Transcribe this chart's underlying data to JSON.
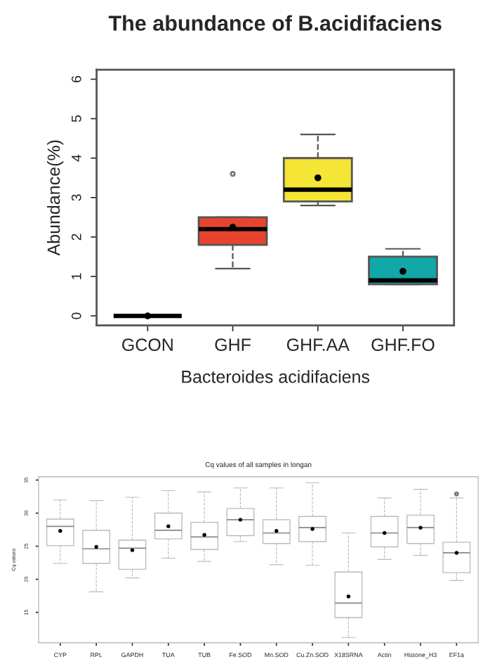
{
  "chart_data": [
    {
      "type": "box",
      "title": "The abundance of B.acidifaciens",
      "xlabel": "Bacteroides acidifaciens",
      "ylabel": "Abundance(%)",
      "categories": [
        "GCON",
        "GHF",
        "GHF.AA",
        "GHF.FO"
      ],
      "colors": [
        "#555555",
        "#e8432e",
        "#f5e535",
        "#12a7a8"
      ],
      "boxes": [
        {
          "low": 0,
          "q1": 0,
          "median": 0,
          "q3": 0,
          "high": 0,
          "mean": 0
        },
        {
          "low": 1.2,
          "q1": 1.8,
          "median": 2.2,
          "q3": 2.5,
          "high": 2.5,
          "mean": 2.25,
          "outliers": [
            3.6
          ]
        },
        {
          "low": 2.8,
          "q1": 2.9,
          "median": 3.2,
          "q3": 4.0,
          "high": 4.6,
          "mean": 3.5
        },
        {
          "low": 0.8,
          "q1": 0.8,
          "median": 0.9,
          "q3": 1.5,
          "high": 1.7,
          "mean": 1.13
        }
      ],
      "ylim": [
        -0.24,
        6.24
      ],
      "yticks": [
        0,
        1,
        2,
        3,
        4,
        5,
        6
      ],
      "grid": false,
      "marker": "circle"
    },
    {
      "type": "box",
      "title": "Cq values of all samples in longan",
      "ylabel": "Cq values",
      "categories": [
        "CYP",
        "RPL",
        "GAPDH",
        "TUA",
        "TUB",
        "Fe.SOD",
        "Mn.SOD",
        "Cu.Zn.SOD",
        "X18SRNA",
        "Actin",
        "Histone_H3",
        "EF1a"
      ],
      "colors": [
        "#ffffff",
        "#ffffff",
        "#ffffff",
        "#ffffff",
        "#ffffff",
        "#ffffff",
        "#ffffff",
        "#ffffff",
        "#ffffff",
        "#ffffff",
        "#ffffff",
        "#ffffff"
      ],
      "boxes": [
        {
          "low": 22.4,
          "q1": 25.1,
          "median": 28.0,
          "q3": 29.1,
          "high": 32.0,
          "mean": 27.3
        },
        {
          "low": 18.1,
          "q1": 22.4,
          "median": 24.6,
          "q3": 27.4,
          "high": 31.9,
          "mean": 24.9
        },
        {
          "low": 20.2,
          "q1": 21.5,
          "median": 24.7,
          "q3": 25.9,
          "high": 32.4,
          "mean": 24.4
        },
        {
          "low": 23.2,
          "q1": 26.1,
          "median": 27.4,
          "q3": 30.0,
          "high": 33.4,
          "mean": 28.0
        },
        {
          "low": 22.7,
          "q1": 24.5,
          "median": 26.4,
          "q3": 28.6,
          "high": 33.2,
          "mean": 26.7
        },
        {
          "low": 25.7,
          "q1": 26.6,
          "median": 29.0,
          "q3": 30.7,
          "high": 33.8,
          "mean": 29.0
        },
        {
          "low": 22.2,
          "q1": 25.4,
          "median": 27.0,
          "q3": 29.0,
          "high": 33.8,
          "mean": 27.3
        },
        {
          "low": 22.1,
          "q1": 25.7,
          "median": 27.8,
          "q3": 29.5,
          "high": 34.6,
          "mean": 27.6
        },
        {
          "low": 11.2,
          "q1": 14.2,
          "median": 16.4,
          "q3": 21.1,
          "high": 27.0,
          "mean": 17.4
        },
        {
          "low": 23.0,
          "q1": 24.9,
          "median": 27.0,
          "q3": 29.5,
          "high": 32.3,
          "mean": 27.0
        },
        {
          "low": 23.6,
          "q1": 25.4,
          "median": 27.8,
          "q3": 29.7,
          "high": 33.6,
          "mean": 27.8
        },
        {
          "low": 19.8,
          "q1": 21.0,
          "median": 24.0,
          "q3": 25.6,
          "high": 32.3,
          "mean": 24.0,
          "outliers": [
            32.9
          ]
        }
      ],
      "ylim": [
        10.4,
        35.5
      ],
      "yticks": [
        15,
        20,
        25,
        30,
        35
      ],
      "grid": false,
      "marker": "circle"
    }
  ]
}
